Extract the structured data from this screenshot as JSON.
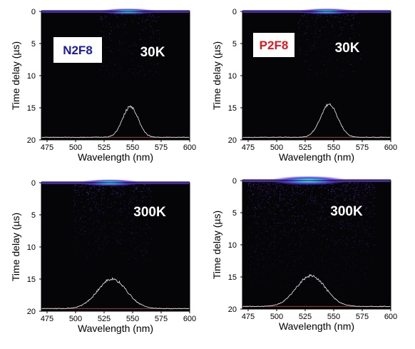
{
  "chart_data": [
    {
      "type": "heatmap",
      "panel": "top-left",
      "sample": "N2F8",
      "sample_color": "#1a1aa6",
      "temperature": "30K",
      "xlabel": "Wavelength (nm)",
      "ylabel": "Time delay (µs)",
      "xlim": [
        470,
        600
      ],
      "ylim": [
        0,
        20
      ],
      "y_inverted": true,
      "xticks": [
        "475",
        "500",
        "525",
        "550",
        "575",
        "600"
      ],
      "yticks": [
        "0",
        "5",
        "10",
        "15",
        "20"
      ],
      "emission_peak_nm": 548,
      "spectrum_fwhm_nm": 16,
      "spectrum_peak_delay_us": 14.8,
      "spectrum_baseline_delay_us": 19.6,
      "bright_band_delay_us": 0,
      "scatter_intensity": 0.12
    },
    {
      "type": "heatmap",
      "panel": "top-right",
      "sample": "P2F8",
      "sample_color": "#e8141e",
      "temperature": "30K",
      "xlabel": "Wavelength (nm)",
      "ylabel": "Time delay (µs)",
      "xlim": [
        470,
        600
      ],
      "ylim": [
        0,
        20
      ],
      "y_inverted": true,
      "xticks": [
        "475",
        "500",
        "525",
        "550",
        "575",
        "600"
      ],
      "yticks": [
        "0",
        "5",
        "10",
        "15",
        "20"
      ],
      "emission_peak_nm": 546,
      "spectrum_fwhm_nm": 18,
      "spectrum_peak_delay_us": 14.5,
      "spectrum_baseline_delay_us": 19.6,
      "bright_band_delay_us": 0,
      "scatter_intensity": 0.12
    },
    {
      "type": "heatmap",
      "panel": "bottom-left",
      "temperature": "300K",
      "xlabel": "Wavelength (nm)",
      "ylabel": "Time delay (µs)",
      "xlim": [
        470,
        600
      ],
      "ylim": [
        0,
        20
      ],
      "y_inverted": true,
      "xticks": [
        "475",
        "500",
        "525",
        "550",
        "575",
        "600"
      ],
      "yticks": [
        "0",
        "5",
        "10",
        "15",
        "20"
      ],
      "emission_peak_nm": 532,
      "spectrum_fwhm_nm": 30,
      "spectrum_peak_delay_us": 15.0,
      "spectrum_baseline_delay_us": 19.6,
      "bright_band_delay_us": 0,
      "scatter_intensity": 0.3
    },
    {
      "type": "heatmap",
      "panel": "bottom-right",
      "temperature": "300K",
      "xlabel": "Wavelength (nm)",
      "ylabel": "Time delay (µs)",
      "xlim": [
        470,
        600
      ],
      "ylim": [
        0,
        20
      ],
      "y_inverted": true,
      "xticks": [
        "475",
        "500",
        "525",
        "550",
        "575",
        "600"
      ],
      "yticks": [
        "0",
        "5",
        "10",
        "15",
        "20"
      ],
      "emission_peak_nm": 530,
      "spectrum_fwhm_nm": 30,
      "spectrum_peak_delay_us": 14.8,
      "spectrum_baseline_delay_us": 19.6,
      "bright_band_delay_us": 0,
      "scatter_intensity": 0.85
    }
  ]
}
